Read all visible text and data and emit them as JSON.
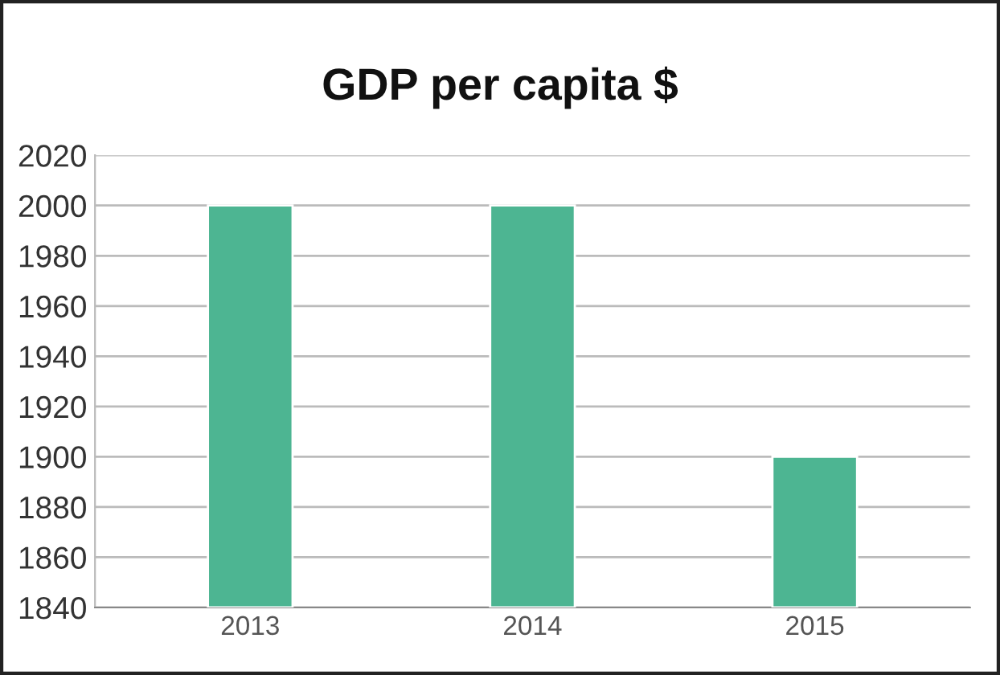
{
  "chart_data": {
    "type": "bar",
    "title": "GDP per capita $",
    "categories": [
      "2013",
      "2014",
      "2015"
    ],
    "values": [
      2000,
      2000,
      1900
    ],
    "color": "#4db592",
    "ylim": [
      1840,
      2020
    ],
    "yticks": [
      1840,
      1860,
      1880,
      1900,
      1920,
      1940,
      1960,
      1980,
      2000,
      2020
    ],
    "grid": "y"
  }
}
